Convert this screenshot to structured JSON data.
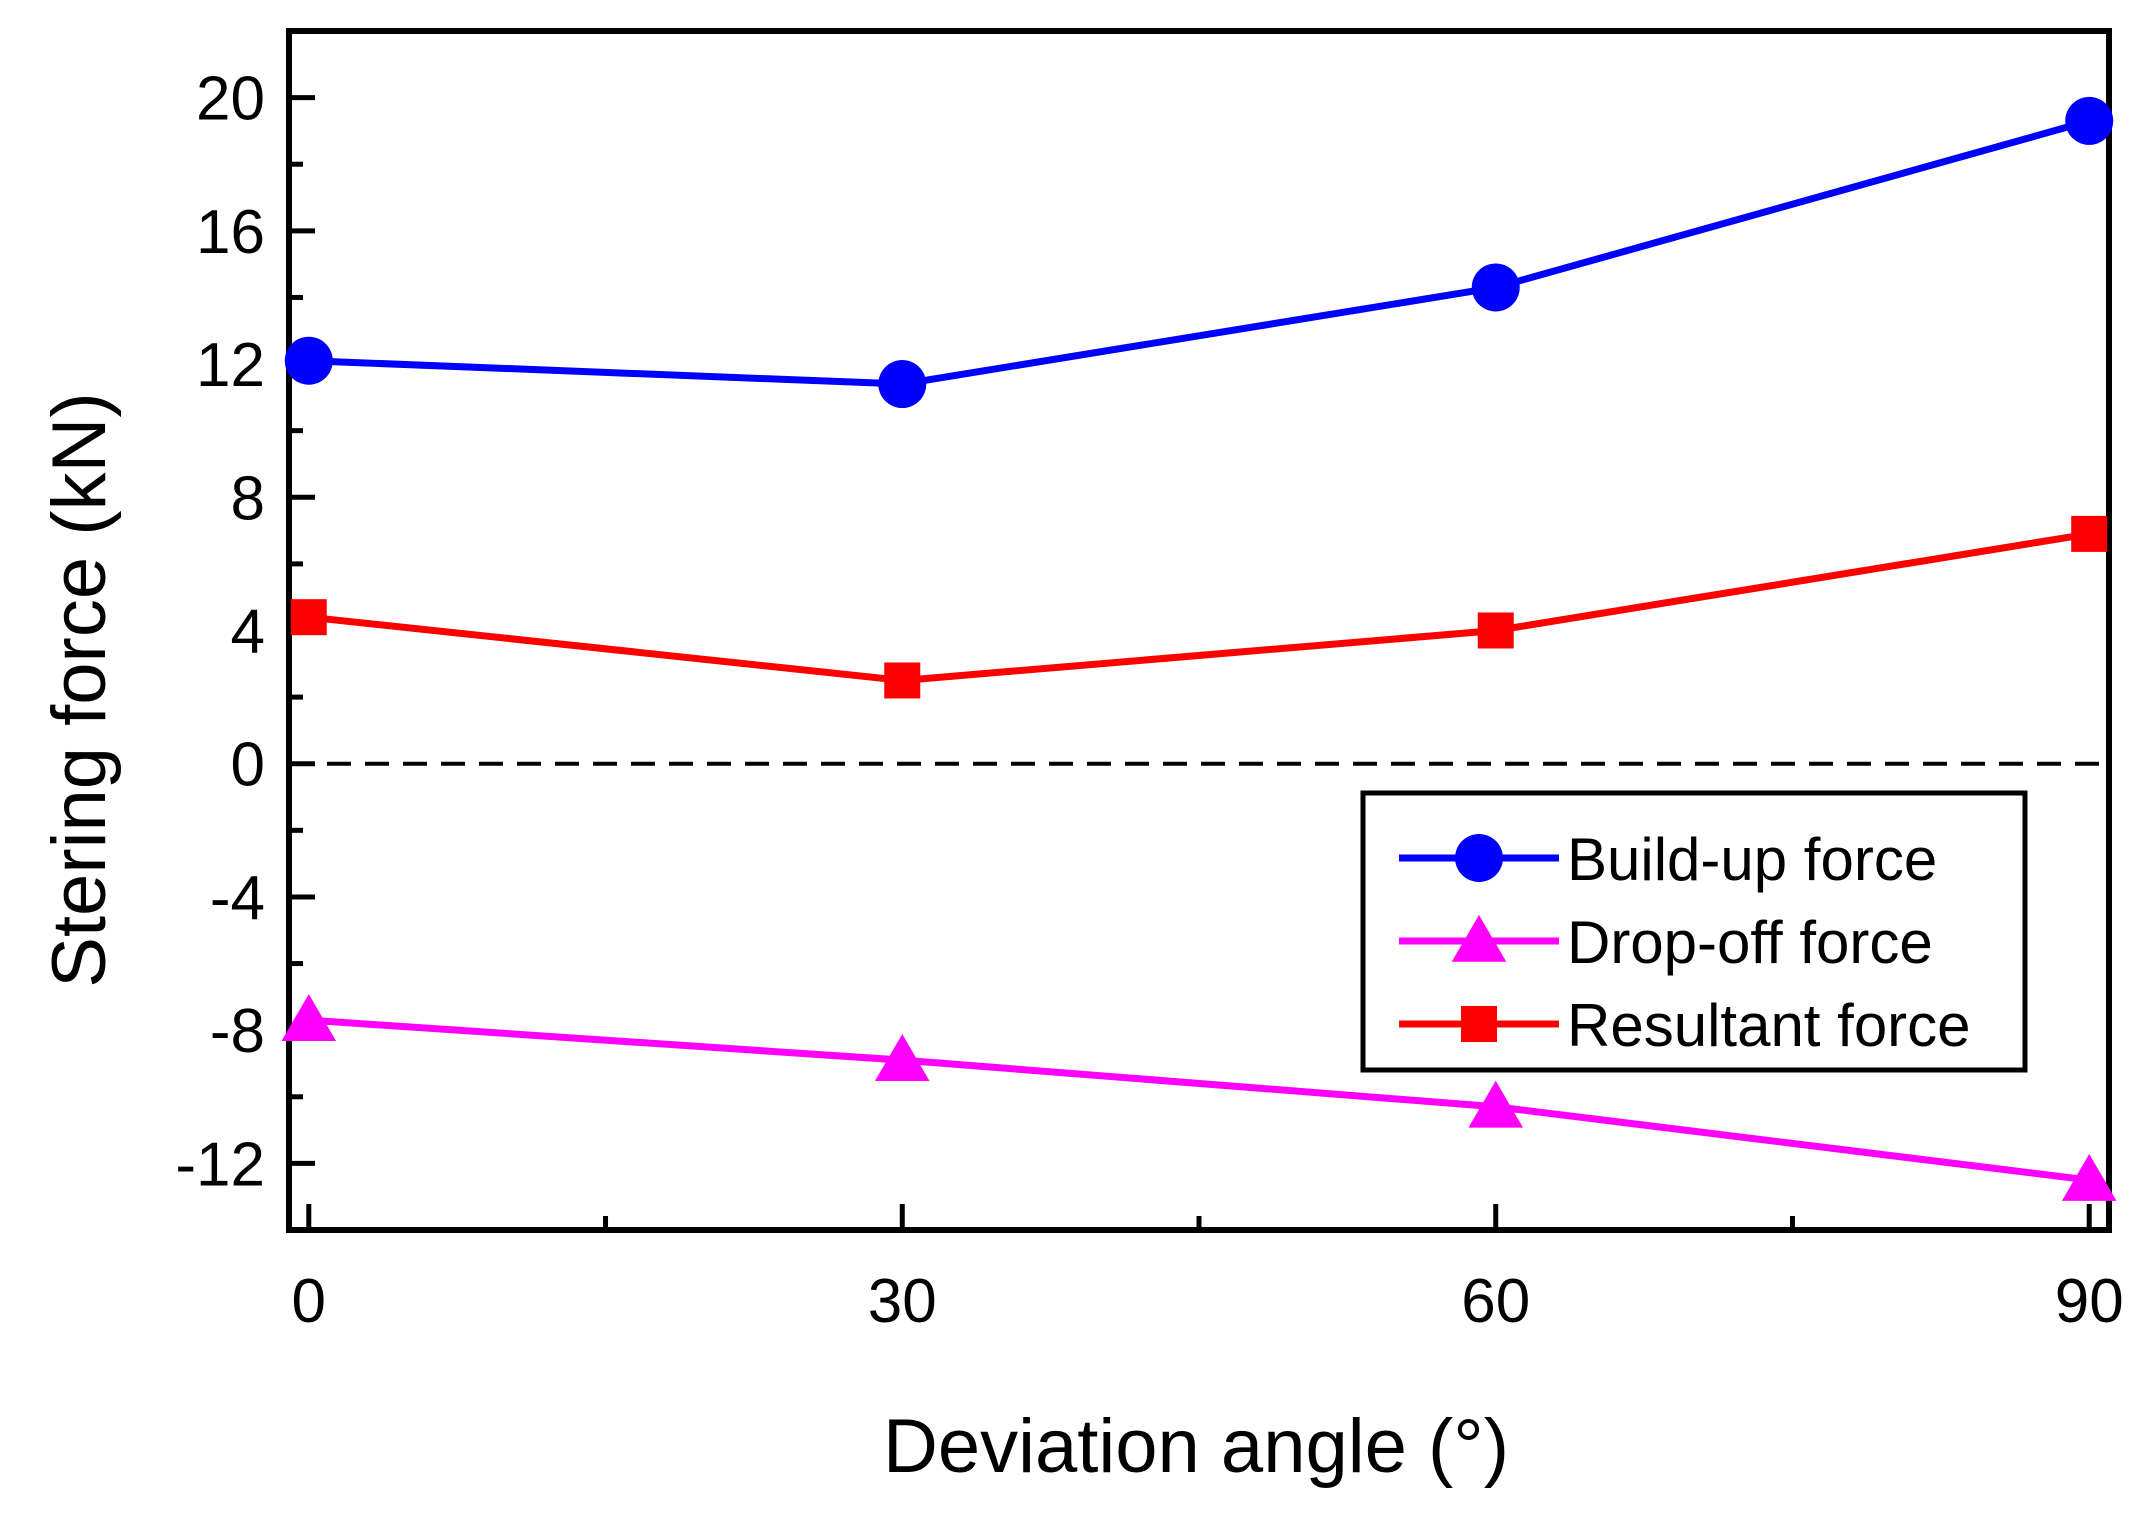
{
  "chart_data": {
    "type": "line",
    "xlabel": "Deviation angle (°)",
    "ylabel": "Stering force (kN)",
    "x": [
      0,
      30,
      60,
      90
    ],
    "xlim": [
      -1,
      91
    ],
    "ylim": [
      -14,
      22
    ],
    "x_ticks": [
      0,
      30,
      60,
      90
    ],
    "x_tick_labels": [
      "0",
      "30",
      "60",
      "90"
    ],
    "y_ticks": [
      -12,
      -8,
      -4,
      0,
      4,
      8,
      12,
      16,
      20
    ],
    "y_tick_labels": [
      "-12",
      "-8",
      "-4",
      "0",
      "4",
      "8",
      "12",
      "16",
      "20"
    ],
    "reference_line": {
      "y": 0,
      "style": "dashed"
    },
    "legend_position": "lower-right",
    "series": [
      {
        "name": "Build-up force",
        "marker": "circle",
        "color": "#0000ff",
        "values": [
          12.1,
          11.4,
          14.3,
          19.3
        ]
      },
      {
        "name": "Drop-off force",
        "marker": "triangle",
        "color": "#ff00ff",
        "values": [
          -7.7,
          -8.9,
          -10.3,
          -12.5
        ]
      },
      {
        "name": "Resultant force",
        "marker": "square",
        "color": "#ff0000",
        "values": [
          4.4,
          2.5,
          4.0,
          6.9
        ]
      }
    ]
  }
}
